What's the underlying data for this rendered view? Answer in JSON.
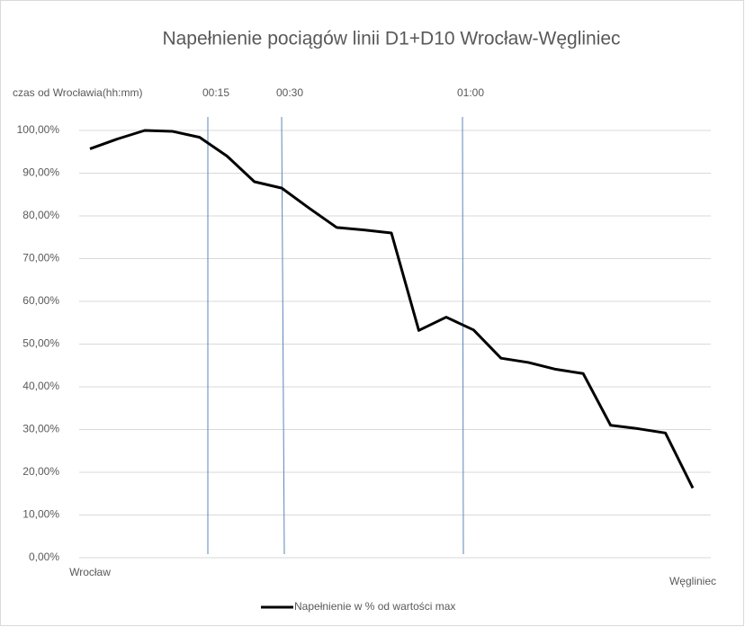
{
  "chart_data": {
    "type": "line",
    "title": "Napełnienie pociągów linii D1+D10 Wrocław-Węgliniec",
    "x_axis_note": "czas od Wrocławia(hh:mm)",
    "annotations": [
      "00:15",
      "00:30",
      "01:00"
    ],
    "categories": [
      "Wrocław",
      null,
      null,
      null,
      null,
      null,
      null,
      null,
      null,
      null,
      null,
      null,
      null,
      null,
      null,
      null,
      null,
      null,
      null,
      null,
      null,
      null,
      "Węgliniec"
    ],
    "series": [
      {
        "name": "Napełnienie w % od wartości max",
        "color": "#000000",
        "values": [
          95.7,
          98,
          100,
          99.8,
          98.4,
          94,
          88,
          86.5,
          81.8,
          77.3,
          76.7,
          76,
          53.2,
          56.3,
          53.3,
          46.7,
          45.7,
          44.1,
          43.1,
          31,
          30.2,
          29.2,
          16.3
        ]
      }
    ],
    "ylim": [
      0,
      100
    ],
    "yticks": [
      {
        "value": 0,
        "label": "0,00%"
      },
      {
        "value": 10,
        "label": "10,00%"
      },
      {
        "value": 20,
        "label": "20,00%"
      },
      {
        "value": 30,
        "label": "30,00%"
      },
      {
        "value": 40,
        "label": "40,00%"
      },
      {
        "value": 50,
        "label": "50,00%"
      },
      {
        "value": 60,
        "label": "60,00%"
      },
      {
        "value": 70,
        "label": "70,00%"
      },
      {
        "value": 80,
        "label": "80,00%"
      },
      {
        "value": 90,
        "label": "90,00%"
      },
      {
        "value": 100,
        "label": "100,00%"
      }
    ],
    "grid": true,
    "legend": "bottom"
  }
}
